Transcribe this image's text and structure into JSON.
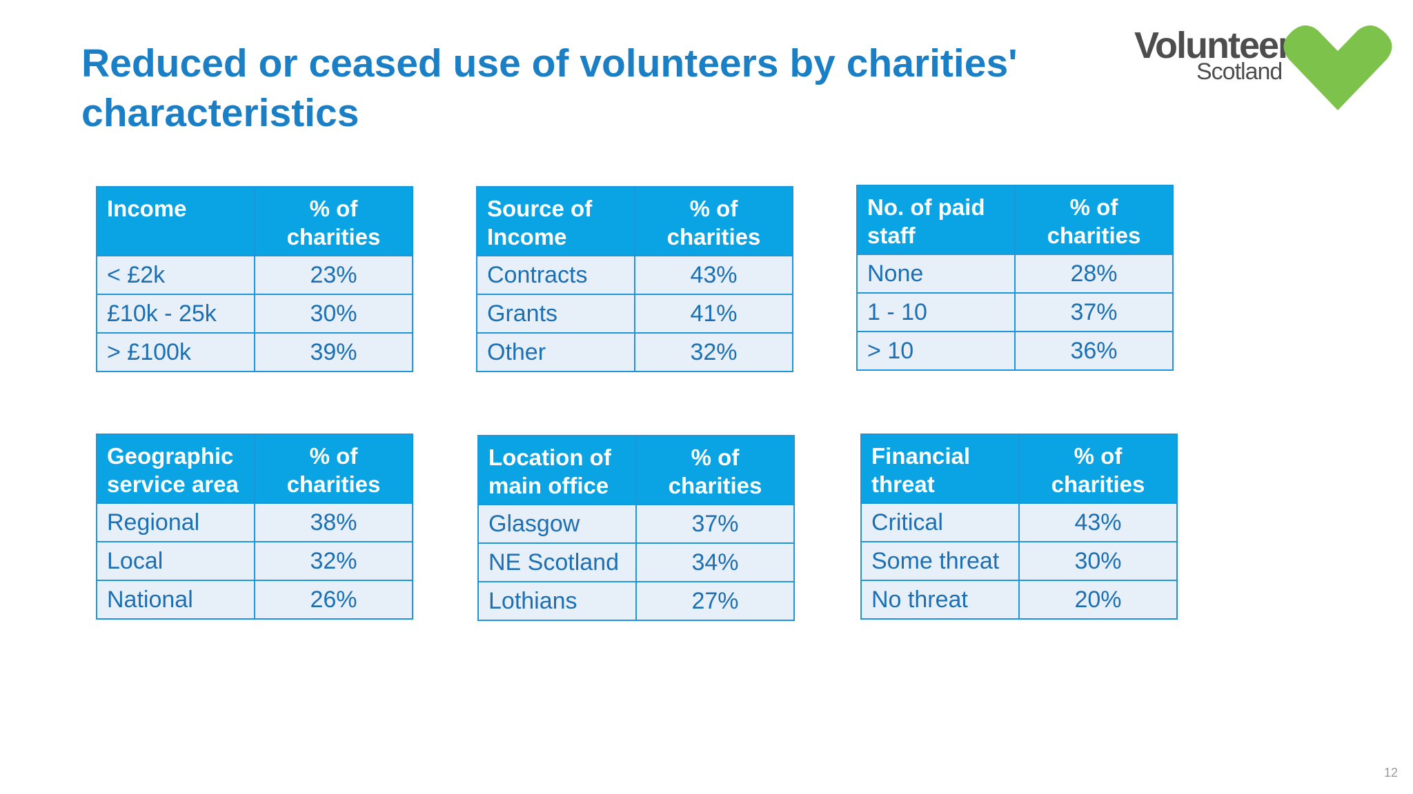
{
  "title": "Reduced or ceased use of volunteers by charities' characteristics",
  "logo": {
    "word": "Volunteer",
    "sub": "Scotland",
    "heart_color": "#7dc24b"
  },
  "tables": [
    {
      "header": [
        "Income",
        "% of charities"
      ],
      "rows": [
        [
          "< £2k",
          "23%"
        ],
        [
          "£10k - 25k",
          "30%"
        ],
        [
          "> £100k",
          "39%"
        ]
      ]
    },
    {
      "header": [
        "Source of Income",
        "% of charities"
      ],
      "rows": [
        [
          "Contracts",
          "43%"
        ],
        [
          "Grants",
          "41%"
        ],
        [
          "Other",
          "32%"
        ]
      ]
    },
    {
      "header": [
        "No. of paid staff",
        "% of charities"
      ],
      "rows": [
        [
          "None",
          "28%"
        ],
        [
          "1 - 10",
          "37%"
        ],
        [
          "> 10",
          "36%"
        ]
      ]
    },
    {
      "header": [
        "Geographic service area",
        "% of charities"
      ],
      "rows": [
        [
          "Regional",
          "38%"
        ],
        [
          "Local",
          "32%"
        ],
        [
          "National",
          "26%"
        ]
      ]
    },
    {
      "header": [
        "Location of main office",
        "% of charities"
      ],
      "rows": [
        [
          "Glasgow",
          "37%"
        ],
        [
          "NE Scotland",
          "34%"
        ],
        [
          "Lothians",
          "27%"
        ]
      ]
    },
    {
      "header": [
        "Financial threat",
        "% of charities"
      ],
      "rows": [
        [
          "Critical",
          "43%"
        ],
        [
          "Some threat",
          "30%"
        ],
        [
          "No threat",
          "20%"
        ]
      ]
    }
  ],
  "page_number": "12",
  "colors": {
    "title": "#1a7fc4",
    "header_bg": "#0aa3e4",
    "cell_bg": "#e7f0f9",
    "cell_text": "#1b6fb2",
    "border": "#1e95d6"
  }
}
